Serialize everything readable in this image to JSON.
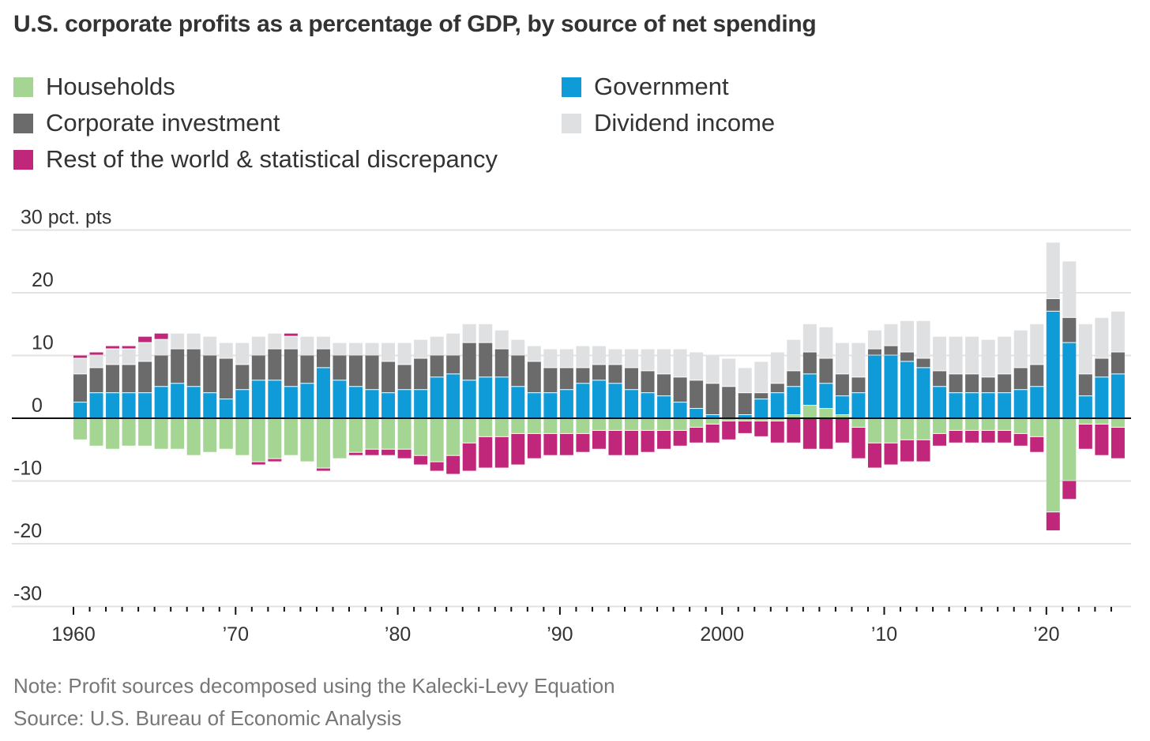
{
  "chart_data": {
    "type": "bar",
    "stacked": true,
    "title": "U.S. corporate profits as a percentage of GDP, by source of net spending",
    "ylabel": "30 pct. pts",
    "ylim": [
      -30,
      30
    ],
    "yticks": [
      30,
      20,
      10,
      0,
      -10,
      -20,
      -30
    ],
    "ytick_labels": [
      "30 pct. pts",
      "20",
      "10",
      "0",
      "-10",
      "-20",
      "-30"
    ],
    "xticks": [
      1960,
      1970,
      1980,
      1990,
      2000,
      2010,
      2020
    ],
    "xtick_labels": [
      "1960",
      "’70",
      "’80",
      "’90",
      "2000",
      "’10",
      "’20"
    ],
    "x_start": 1960,
    "x_end": 2024,
    "grid": true,
    "legend_position": "top",
    "series": [
      {
        "name": "Households",
        "color": "#a5d592",
        "values": [
          -3.5,
          -4.5,
          -5,
          -4.5,
          -4.5,
          -5,
          -5,
          -6,
          -5.5,
          -5,
          -6,
          -7,
          -6.5,
          -6,
          -7,
          -8,
          -6.5,
          -5.5,
          -5,
          -5,
          -5,
          -6,
          -7,
          -6,
          -4,
          -3,
          -3,
          -2.5,
          -2.5,
          -2.5,
          -2.5,
          -2.5,
          -2,
          -2,
          -2,
          -2,
          -2,
          -2,
          -1.5,
          -1,
          -0.5,
          -0.5,
          -0.5,
          -0.5,
          0.5,
          2,
          1.5,
          0.5,
          -1.5,
          -4,
          -4,
          -3.5,
          -3.5,
          -2.5,
          -2,
          -2,
          -2,
          -2,
          -2.5,
          -3,
          -15,
          -10,
          -1,
          -1,
          -1.5
        ]
      },
      {
        "name": "Government",
        "color": "#0f9ad8",
        "values": [
          2.5,
          4,
          4,
          4,
          4,
          5,
          5.5,
          5,
          4,
          3,
          4.5,
          6,
          6,
          5,
          5.5,
          8,
          6,
          5,
          4.5,
          4,
          4.5,
          4.5,
          6.5,
          7,
          6,
          6.5,
          6.5,
          5,
          4,
          4,
          4.5,
          5.5,
          6,
          5.5,
          4.5,
          4,
          3.5,
          2.5,
          1.5,
          0.5,
          0,
          0.5,
          3,
          4,
          4.5,
          5,
          4,
          3,
          4,
          10,
          10,
          9,
          8,
          5,
          4,
          4,
          4,
          4,
          4.5,
          5,
          17,
          12,
          3.5,
          6.5,
          7
        ]
      },
      {
        "name": "Corporate investment",
        "color": "#6b6b6b",
        "values": [
          4.5,
          4,
          4.5,
          4.5,
          5,
          5,
          5.5,
          6,
          6,
          6.5,
          4,
          4,
          5,
          6,
          4.5,
          3,
          4,
          5,
          5.5,
          5,
          4,
          5,
          3.5,
          3,
          6,
          5.5,
          4.5,
          5,
          5,
          4,
          3.5,
          2.5,
          2.5,
          3,
          3.5,
          3.5,
          3.5,
          4,
          4.5,
          5,
          5,
          3.5,
          1,
          1.5,
          2.5,
          3.5,
          4,
          3.5,
          2.5,
          1,
          1.5,
          1.5,
          1.5,
          2.5,
          3,
          3,
          2.5,
          3,
          3.5,
          3.5,
          2,
          4,
          3.5,
          3,
          3.5
        ]
      },
      {
        "name": "Dividend income",
        "color": "#dfe0e2",
        "values": [
          2.5,
          2,
          2.5,
          2.5,
          3,
          2.5,
          2.5,
          2.5,
          3,
          2.5,
          3.5,
          3,
          2.5,
          2,
          3,
          2,
          2,
          2,
          2,
          3,
          3.5,
          3,
          3,
          3.5,
          3,
          3,
          3,
          2.5,
          2.5,
          3,
          3,
          3.5,
          3,
          2.5,
          3,
          3.5,
          4,
          4.5,
          4.5,
          4.5,
          4.5,
          4,
          5,
          5,
          5,
          4.5,
          5,
          5,
          5.5,
          3,
          3.5,
          5,
          6,
          5.5,
          6,
          6,
          6,
          6,
          6,
          6.5,
          9,
          9,
          8,
          6.5,
          6.5
        ]
      },
      {
        "name": "Rest of the world & statistical discrepancy",
        "color": "#c0267a",
        "values": [
          0.5,
          0.5,
          0.5,
          0.5,
          1,
          1,
          0,
          0,
          0,
          0,
          0,
          -0.5,
          -0.5,
          0.5,
          0,
          -0.5,
          0,
          -0.5,
          -1,
          -1,
          -1.5,
          -1.5,
          -1.5,
          -3,
          -4.5,
          -5,
          -5,
          -5,
          -4,
          -3.5,
          -3.5,
          -3,
          -3,
          -4,
          -4,
          -3.5,
          -3,
          -2.5,
          -2.5,
          -3,
          -3,
          -2,
          -2.5,
          -3.5,
          -4,
          -5,
          -5,
          -4,
          -5,
          -4,
          -3.5,
          -3.5,
          -3.5,
          -2,
          -2,
          -2,
          -2,
          -2,
          -2,
          -2.5,
          -3,
          -3,
          -4,
          -5,
          -5
        ]
      }
    ],
    "legend_order": [
      "Households",
      "Government",
      "Corporate investment",
      "Dividend income",
      "Rest of the world & statistical discrepancy"
    ]
  },
  "notes": {
    "note": "Note: Profit sources decomposed using the Kalecki-Levy Equation",
    "source": "Source: U.S. Bureau of Economic Analysis"
  }
}
